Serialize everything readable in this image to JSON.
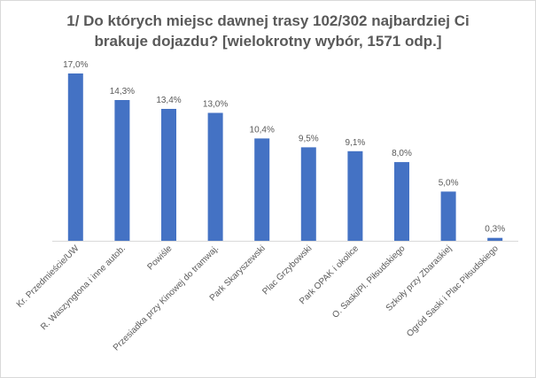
{
  "chart_data": {
    "type": "bar",
    "title_line1": "1/ Do których miejsc dawnej trasy 102/302 najbardziej Ci",
    "title_line2": "brakuje dojazdu? [wielokrotny wybór, 1571 odp.]",
    "categories": [
      "Kr. Przedmieście/UW",
      "R. Waszyngtona i inne autob.",
      "Powiśle",
      "Przesiadka przy Kinowej do tramwaj.",
      "Park Skaryszewski",
      "Plac Grzybowski",
      "Park OPAK i okolice",
      "O. Saski/Pl. Piłsudskiego",
      "Szkoły przy Zbaraskiej",
      "Ogród Saski i Plac Piłsudskiego"
    ],
    "values": [
      17.0,
      14.3,
      13.4,
      13.0,
      10.4,
      9.5,
      9.1,
      8.0,
      5.0,
      0.3
    ],
    "data_labels": [
      "17,0%",
      "14,3%",
      "13,4%",
      "13,0%",
      "10,4%",
      "9,5%",
      "9,1%",
      "8,0%",
      "5,0%",
      "0,3%"
    ],
    "ylim": [
      0,
      17
    ],
    "grid": false,
    "legend": "none",
    "bar_color": "#4472c4",
    "axis_color": "#d9d9d9",
    "label_color": "#595959"
  }
}
